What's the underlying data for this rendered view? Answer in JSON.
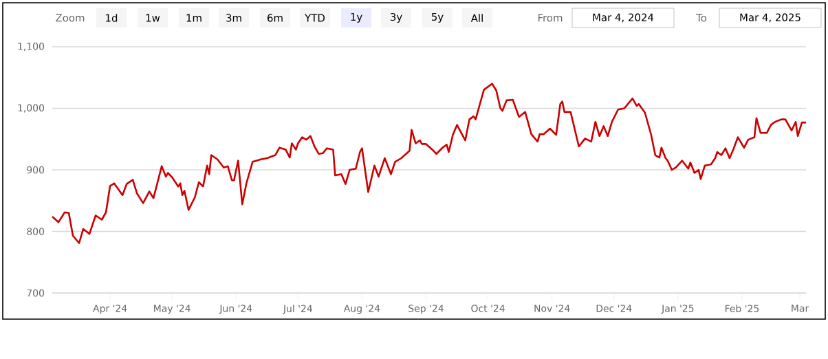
{
  "chart_data": {
    "type": "line",
    "color": "#cc0000",
    "annotations": [
      "Zoom",
      "1d",
      "1w",
      "1m",
      "3m",
      "6m",
      "YTD",
      "1y",
      "3y",
      "5y",
      "All",
      "From",
      "Mar 4, 2024",
      "To",
      "Mar 4, 2025"
    ],
    "x": [
      "2024-03-04",
      "2024-03-07",
      "2024-03-10",
      "2024-03-12",
      "2024-03-14",
      "2024-03-17",
      "2024-03-19",
      "2024-03-22",
      "2024-03-25",
      "2024-03-28",
      "2024-03-30",
      "2024-04-01",
      "2024-04-03",
      "2024-04-07",
      "2024-04-09",
      "2024-04-12",
      "2024-04-14",
      "2024-04-17",
      "2024-04-20",
      "2024-04-22",
      "2024-04-26",
      "2024-04-28",
      "2024-04-29",
      "2024-05-01",
      "2024-05-04",
      "2024-05-05",
      "2024-05-06",
      "2024-05-07",
      "2024-05-09",
      "2024-05-12",
      "2024-05-14",
      "2024-05-16",
      "2024-05-18",
      "2024-05-19",
      "2024-05-20",
      "2024-05-23",
      "2024-05-26",
      "2024-05-28",
      "2024-05-30",
      "2024-05-31",
      "2024-06-02",
      "2024-06-04",
      "2024-06-06",
      "2024-06-09",
      "2024-06-13",
      "2024-06-16",
      "2024-06-20",
      "2024-06-22",
      "2024-06-25",
      "2024-06-27",
      "2024-06-28",
      "2024-06-30",
      "2024-07-01",
      "2024-07-03",
      "2024-07-05",
      "2024-07-07",
      "2024-07-09",
      "2024-07-11",
      "2024-07-13",
      "2024-07-15",
      "2024-07-18",
      "2024-07-19",
      "2024-07-22",
      "2024-07-24",
      "2024-07-26",
      "2024-07-29",
      "2024-07-31",
      "2024-08-01",
      "2024-08-04",
      "2024-08-07",
      "2024-08-09",
      "2024-08-12",
      "2024-08-15",
      "2024-08-17",
      "2024-08-20",
      "2024-08-24",
      "2024-08-25",
      "2024-08-27",
      "2024-08-29",
      "2024-08-30",
      "2024-09-01",
      "2024-09-04",
      "2024-09-06",
      "2024-09-09",
      "2024-09-11",
      "2024-09-12",
      "2024-09-14",
      "2024-09-16",
      "2024-09-20",
      "2024-09-22",
      "2024-09-24",
      "2024-09-25",
      "2024-09-27",
      "2024-09-29",
      "2024-10-03",
      "2024-10-05",
      "2024-10-07",
      "2024-10-08",
      "2024-10-10",
      "2024-10-13",
      "2024-10-16",
      "2024-10-19",
      "2024-10-22",
      "2024-10-25",
      "2024-10-26",
      "2024-10-28",
      "2024-10-31",
      "2024-11-03",
      "2024-11-05",
      "2024-11-06",
      "2024-11-07",
      "2024-11-10",
      "2024-11-14",
      "2024-11-17",
      "2024-11-20",
      "2024-11-22",
      "2024-11-24",
      "2024-11-26",
      "2024-11-28",
      "2024-11-30",
      "2024-12-03",
      "2024-12-06",
      "2024-12-10",
      "2024-12-12",
      "2024-12-13",
      "2024-12-16",
      "2024-12-19",
      "2024-12-21",
      "2024-12-23",
      "2024-12-24",
      "2024-12-26",
      "2024-12-27",
      "2024-12-29",
      "2024-12-31",
      "2025-01-03",
      "2025-01-06",
      "2025-01-07",
      "2025-01-09",
      "2025-01-11",
      "2025-01-12",
      "2025-01-14",
      "2025-01-17",
      "2025-01-19",
      "2025-01-20",
      "2025-01-22",
      "2025-01-24",
      "2025-01-26",
      "2025-01-28",
      "2025-01-30",
      "2025-02-02",
      "2025-02-04",
      "2025-02-07",
      "2025-02-08",
      "2025-02-10",
      "2025-02-13",
      "2025-02-15",
      "2025-02-17",
      "2025-02-20",
      "2025-02-22",
      "2025-02-25",
      "2025-02-27",
      "2025-02-28",
      "2025-03-02",
      "2025-03-04"
    ],
    "values": [
      824,
      815,
      831,
      830,
      793,
      781,
      804,
      796,
      826,
      819,
      831,
      874,
      878,
      859,
      877,
      884,
      862,
      846,
      865,
      854,
      906,
      889,
      895,
      888,
      873,
      878,
      859,
      866,
      835,
      855,
      880,
      873,
      907,
      893,
      924,
      917,
      904,
      906,
      883,
      883,
      915,
      844,
      878,
      913,
      917,
      919,
      924,
      936,
      933,
      920,
      943,
      933,
      943,
      953,
      949,
      955,
      938,
      926,
      927,
      935,
      933,
      891,
      893,
      877,
      900,
      902,
      929,
      935,
      864,
      907,
      889,
      919,
      893,
      913,
      919,
      931,
      965,
      943,
      948,
      942,
      942,
      933,
      926,
      936,
      941,
      929,
      957,
      973,
      948,
      982,
      987,
      982,
      1006,
      1030,
      1040,
      1029,
      1000,
      996,
      1013,
      1014,
      986,
      994,
      958,
      946,
      958,
      958,
      967,
      957,
      1007,
      1011,
      994,
      994,
      938,
      951,
      946,
      978,
      955,
      971,
      955,
      978,
      998,
      1000,
      1016,
      1004,
      1007,
      993,
      957,
      924,
      920,
      936,
      919,
      915,
      900,
      904,
      915,
      902,
      912,
      895,
      900,
      885,
      907,
      909,
      919,
      929,
      924,
      935,
      919,
      935,
      953,
      936,
      949,
      953,
      984,
      960,
      960,
      973,
      978,
      982,
      982,
      964,
      978,
      955,
      977,
      977
    ],
    "xlim": [
      "2024-03-04",
      "2025-03-04"
    ],
    "xticks": [
      {
        "value": "2024-04-01",
        "label": "Apr '24"
      },
      {
        "value": "2024-05-01",
        "label": "May '24"
      },
      {
        "value": "2024-06-01",
        "label": "Jun '24"
      },
      {
        "value": "2024-07-01",
        "label": "Jul '24"
      },
      {
        "value": "2024-08-01",
        "label": "Aug '24"
      },
      {
        "value": "2024-09-01",
        "label": "Sep '24"
      },
      {
        "value": "2024-10-01",
        "label": "Oct '24"
      },
      {
        "value": "2024-11-01",
        "label": "Nov '24"
      },
      {
        "value": "2024-12-01",
        "label": "Dec '24"
      },
      {
        "value": "2025-01-01",
        "label": "Jan '25"
      },
      {
        "value": "2025-02-01",
        "label": "Feb '25"
      },
      {
        "value": "2025-03-01",
        "label": "Mar"
      }
    ],
    "ylim": [
      700,
      1100
    ],
    "yticks": [
      700,
      800,
      900,
      {
        "value": 1000,
        "label": "1,000"
      },
      {
        "value": 1100,
        "label": "1,100"
      }
    ],
    "grid": "y"
  }
}
